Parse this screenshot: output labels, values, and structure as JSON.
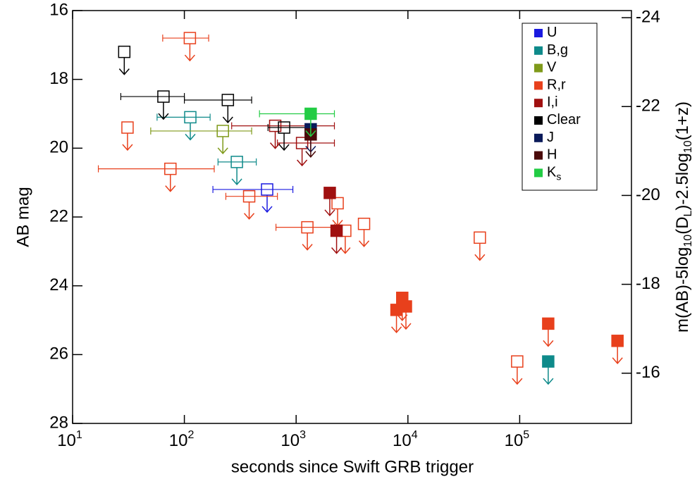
{
  "chart_data": {
    "type": "scatter",
    "xlabel": "seconds since Swift GRB trigger",
    "ylabel": "AB mag",
    "y2label_parts": [
      {
        "text": "m(AB)-5log"
      },
      {
        "text": "10",
        "baseline": "sub"
      },
      {
        "text": "(D"
      },
      {
        "text": "L",
        "baseline": "sub"
      },
      {
        "text": ")-2.5log"
      },
      {
        "text": "10",
        "baseline": "sub"
      },
      {
        "text": "(1+z)"
      }
    ],
    "xscale": "log",
    "xlim": [
      10,
      1000000
    ],
    "xticks": [
      {
        "value": 10,
        "label": "10",
        "exponent": "1"
      },
      {
        "value": 100,
        "label": "10",
        "exponent": "2"
      },
      {
        "value": 1000,
        "label": "10",
        "exponent": "3"
      },
      {
        "value": 10000,
        "label": "10",
        "exponent": "4"
      },
      {
        "value": 100000,
        "label": "10",
        "exponent": "5"
      }
    ],
    "ylim": [
      16,
      28
    ],
    "yinverted": true,
    "yticks": [
      16,
      18,
      20,
      22,
      24,
      26,
      28
    ],
    "y2lim": [
      -24.16,
      -14.87
    ],
    "y2ticks": [
      -24,
      -22,
      -20,
      -18,
      -16
    ],
    "upper_limits": true,
    "legend": "upper right",
    "series": [
      {
        "name": "U",
        "color": "#1a1ae0",
        "x": [
          550
        ],
        "values": [
          21.2
        ],
        "filled": [
          false
        ],
        "xerr": [
          [
            180,
            935
          ]
        ]
      },
      {
        "name": "B,g",
        "color": "#0e8a8a",
        "x": [
          113,
          295,
          180000
        ],
        "values": [
          19.1,
          20.4,
          26.2
        ],
        "filled": [
          false,
          false,
          true
        ],
        "xerr": [
          [
            57,
            170
          ],
          [
            200,
            440
          ],
          null
        ]
      },
      {
        "name": "V",
        "color": "#7f9a1a",
        "x": [
          221
        ],
        "values": [
          19.5
        ],
        "filled": [
          false
        ],
        "xerr": [
          [
            50,
            400
          ]
        ]
      },
      {
        "name": "R,r",
        "color": "#e8401c",
        "x": [
          31,
          112,
          75,
          380,
          1260,
          2350,
          2750,
          4050,
          44000,
          95000,
          7900,
          8900,
          9600,
          180000,
          750000
        ],
        "values": [
          19.4,
          16.8,
          20.6,
          21.4,
          22.3,
          21.6,
          22.4,
          22.2,
          22.6,
          26.2,
          24.7,
          24.35,
          24.6,
          25.1,
          25.6
        ],
        "filled": [
          false,
          false,
          false,
          false,
          false,
          false,
          false,
          false,
          false,
          false,
          true,
          true,
          true,
          true,
          true
        ],
        "xerr": [
          null,
          [
            64,
            165
          ],
          [
            17,
            185
          ],
          [
            235,
            680
          ],
          [
            660,
            2200
          ],
          null,
          null,
          null,
          null,
          null,
          null,
          null,
          null,
          null,
          null
        ]
      },
      {
        "name": "I,i",
        "color": "#a01010",
        "x": [
          650,
          1130,
          2000,
          2300
        ],
        "values": [
          19.35,
          19.85,
          21.3,
          22.4
        ],
        "filled": [
          false,
          false,
          true,
          true
        ],
        "xerr": [
          [
            265,
            2200
          ],
          [
            680,
            2200
          ],
          null,
          null
        ]
      },
      {
        "name": "Clear",
        "color": "#000000",
        "x": [
          29,
          65,
          245,
          780
        ],
        "values": [
          17.2,
          18.5,
          18.6,
          19.4
        ],
        "filled": [
          false,
          false,
          false,
          false
        ],
        "xerr": [
          null,
          [
            27,
            100
          ],
          [
            100,
            400
          ],
          [
            560,
            1300
          ]
        ]
      },
      {
        "name": "J",
        "color": "#0a1a5a",
        "x": [
          1350
        ],
        "values": [
          19.45
        ],
        "filled": [
          true
        ],
        "xerr": [
          null
        ]
      },
      {
        "name": "H",
        "color": "#4a0a0a",
        "x": [
          1350
        ],
        "values": [
          19.6
        ],
        "filled": [
          true
        ],
        "xerr": [
          null
        ]
      },
      {
        "name": "K",
        "name_sub": "s",
        "color": "#22cc44",
        "x": [
          1350
        ],
        "values": [
          19.0
        ],
        "filled": [
          true
        ],
        "xerr": [
          [
            470,
            2200
          ]
        ]
      }
    ]
  }
}
